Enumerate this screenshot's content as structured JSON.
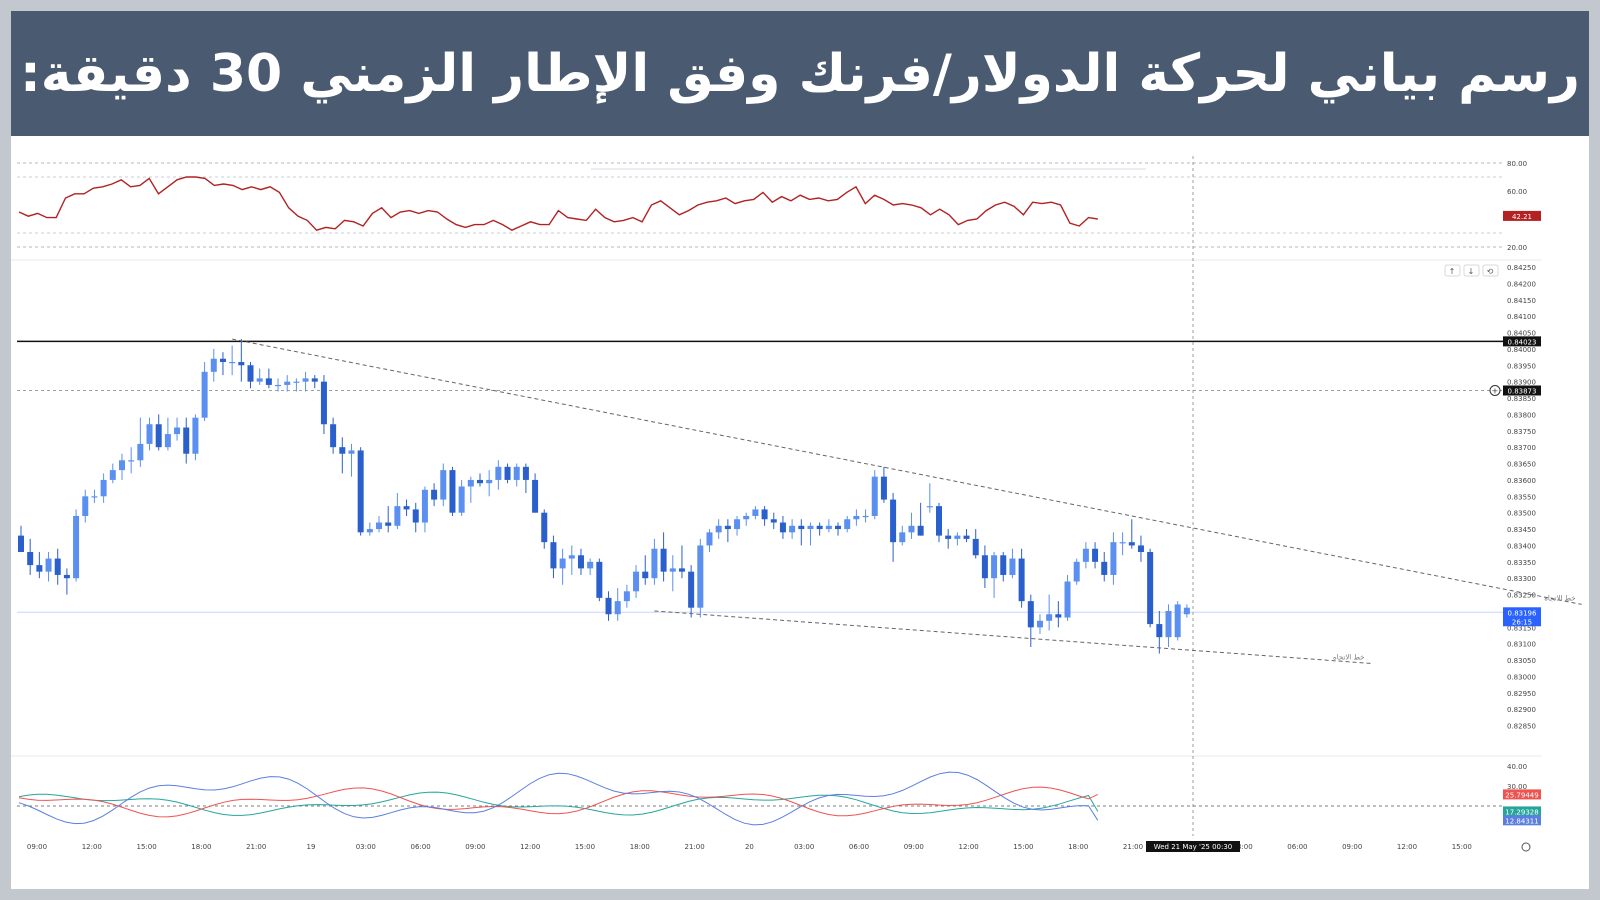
{
  "banner": {
    "title": "رسم بياني لحركة الدولار/فرنك وفق الإطار الزمني 30 دقيقة:",
    "bg_color": "#4a5a70"
  },
  "chart_data": {
    "type": "candlestick",
    "symbol": "USD/CHF",
    "timeframe": "30",
    "price_axis": {
      "ylim": [
        0.828,
        0.8425
      ],
      "ticks": [
        "0.84250",
        "0.84200",
        "0.84150",
        "0.84100",
        "0.84050",
        "0.84000",
        "0.83950",
        "0.83900",
        "0.83850",
        "0.83800",
        "0.83750",
        "0.83700",
        "0.83650",
        "0.83600",
        "0.83550",
        "0.83500",
        "0.83450",
        "0.83400",
        "0.83350",
        "0.83300",
        "0.83250",
        "0.83200",
        "0.83150",
        "0.83100",
        "0.83050",
        "0.83000",
        "0.82950",
        "0.82900",
        "0.82850"
      ]
    },
    "time_axis": {
      "labels": [
        "09:00",
        "12:00",
        "15:00",
        "18:00",
        "21:00",
        "19",
        "03:00",
        "06:00",
        "09:00",
        "12:00",
        "15:00",
        "18:00",
        "21:00",
        "20",
        "03:00",
        "06:00",
        "09:00",
        "12:00",
        "15:00",
        "18:00",
        "21:00",
        "00:00",
        "03:00",
        "06:00",
        "09:00",
        "12:00",
        "15:00"
      ],
      "crosshair_label": "Wed 21 May '25   00:30"
    },
    "bull_color": "#5b8ff0",
    "bear_color": "#2a5fcc",
    "candles": [
      {
        "o": 0.8343,
        "h": 0.8346,
        "l": 0.8338,
        "c": 0.8338
      },
      {
        "o": 0.8338,
        "h": 0.8342,
        "l": 0.8331,
        "c": 0.8334
      },
      {
        "o": 0.8334,
        "h": 0.8338,
        "l": 0.833,
        "c": 0.8332
      },
      {
        "o": 0.8332,
        "h": 0.8338,
        "l": 0.8329,
        "c": 0.8336
      },
      {
        "o": 0.8336,
        "h": 0.8339,
        "l": 0.8328,
        "c": 0.8331
      },
      {
        "o": 0.8331,
        "h": 0.8333,
        "l": 0.8325,
        "c": 0.833
      },
      {
        "o": 0.833,
        "h": 0.8351,
        "l": 0.8329,
        "c": 0.8349
      },
      {
        "o": 0.8349,
        "h": 0.8357,
        "l": 0.8347,
        "c": 0.8355
      },
      {
        "o": 0.8355,
        "h": 0.8357,
        "l": 0.8353,
        "c": 0.8355
      },
      {
        "o": 0.8355,
        "h": 0.8362,
        "l": 0.8353,
        "c": 0.836
      },
      {
        "o": 0.836,
        "h": 0.8365,
        "l": 0.8359,
        "c": 0.8363
      },
      {
        "o": 0.8363,
        "h": 0.8368,
        "l": 0.836,
        "c": 0.8366
      },
      {
        "o": 0.8366,
        "h": 0.837,
        "l": 0.8362,
        "c": 0.8366
      },
      {
        "o": 0.8366,
        "h": 0.8379,
        "l": 0.8364,
        "c": 0.8371
      },
      {
        "o": 0.8371,
        "h": 0.8379,
        "l": 0.8369,
        "c": 0.8377
      },
      {
        "o": 0.8377,
        "h": 0.838,
        "l": 0.8369,
        "c": 0.837
      },
      {
        "o": 0.837,
        "h": 0.8379,
        "l": 0.8369,
        "c": 0.8374
      },
      {
        "o": 0.8374,
        "h": 0.8379,
        "l": 0.8372,
        "c": 0.8376
      },
      {
        "o": 0.8376,
        "h": 0.8379,
        "l": 0.8365,
        "c": 0.8368
      },
      {
        "o": 0.8368,
        "h": 0.838,
        "l": 0.8366,
        "c": 0.8379
      },
      {
        "o": 0.8379,
        "h": 0.8396,
        "l": 0.8378,
        "c": 0.8393
      },
      {
        "o": 0.8393,
        "h": 0.84,
        "l": 0.839,
        "c": 0.8397
      },
      {
        "o": 0.8397,
        "h": 0.8399,
        "l": 0.8392,
        "c": 0.8396
      },
      {
        "o": 0.8396,
        "h": 0.8401,
        "l": 0.8392,
        "c": 0.8396
      },
      {
        "o": 0.8396,
        "h": 0.8403,
        "l": 0.839,
        "c": 0.8395
      },
      {
        "o": 0.8395,
        "h": 0.8396,
        "l": 0.8388,
        "c": 0.839
      },
      {
        "o": 0.839,
        "h": 0.8394,
        "l": 0.8389,
        "c": 0.8391
      },
      {
        "o": 0.8391,
        "h": 0.8394,
        "l": 0.8388,
        "c": 0.8389
      },
      {
        "o": 0.8389,
        "h": 0.8391,
        "l": 0.8387,
        "c": 0.8389
      },
      {
        "o": 0.8389,
        "h": 0.8392,
        "l": 0.8387,
        "c": 0.839
      },
      {
        "o": 0.839,
        "h": 0.8391,
        "l": 0.8387,
        "c": 0.839
      },
      {
        "o": 0.839,
        "h": 0.8393,
        "l": 0.8387,
        "c": 0.8391
      },
      {
        "o": 0.8391,
        "h": 0.8392,
        "l": 0.8388,
        "c": 0.839
      },
      {
        "o": 0.839,
        "h": 0.8392,
        "l": 0.8374,
        "c": 0.8377
      },
      {
        "o": 0.8377,
        "h": 0.8379,
        "l": 0.8368,
        "c": 0.837
      },
      {
        "o": 0.837,
        "h": 0.8373,
        "l": 0.8362,
        "c": 0.8368
      },
      {
        "o": 0.8368,
        "h": 0.8371,
        "l": 0.8361,
        "c": 0.8369
      },
      {
        "o": 0.8369,
        "h": 0.837,
        "l": 0.8343,
        "c": 0.8344
      },
      {
        "o": 0.8344,
        "h": 0.8347,
        "l": 0.8343,
        "c": 0.8345
      },
      {
        "o": 0.8345,
        "h": 0.8349,
        "l": 0.8344,
        "c": 0.8347
      },
      {
        "o": 0.8347,
        "h": 0.8352,
        "l": 0.8344,
        "c": 0.8346
      },
      {
        "o": 0.8346,
        "h": 0.8356,
        "l": 0.8345,
        "c": 0.8352
      },
      {
        "o": 0.8352,
        "h": 0.8354,
        "l": 0.8349,
        "c": 0.8351
      },
      {
        "o": 0.8351,
        "h": 0.8353,
        "l": 0.8344,
        "c": 0.8347
      },
      {
        "o": 0.8347,
        "h": 0.8358,
        "l": 0.8344,
        "c": 0.8357
      },
      {
        "o": 0.8357,
        "h": 0.8359,
        "l": 0.8352,
        "c": 0.8354
      },
      {
        "o": 0.8354,
        "h": 0.8365,
        "l": 0.8352,
        "c": 0.8363
      },
      {
        "o": 0.8363,
        "h": 0.8364,
        "l": 0.8349,
        "c": 0.835
      },
      {
        "o": 0.835,
        "h": 0.836,
        "l": 0.8349,
        "c": 0.8358
      },
      {
        "o": 0.8358,
        "h": 0.8361,
        "l": 0.8353,
        "c": 0.836
      },
      {
        "o": 0.836,
        "h": 0.8362,
        "l": 0.8358,
        "c": 0.8359
      },
      {
        "o": 0.8359,
        "h": 0.8363,
        "l": 0.8355,
        "c": 0.836
      },
      {
        "o": 0.836,
        "h": 0.8366,
        "l": 0.8357,
        "c": 0.8364
      },
      {
        "o": 0.8364,
        "h": 0.8365,
        "l": 0.8359,
        "c": 0.836
      },
      {
        "o": 0.836,
        "h": 0.8365,
        "l": 0.8358,
        "c": 0.8364
      },
      {
        "o": 0.8364,
        "h": 0.8365,
        "l": 0.8356,
        "c": 0.836
      },
      {
        "o": 0.836,
        "h": 0.8362,
        "l": 0.835,
        "c": 0.835
      },
      {
        "o": 0.835,
        "h": 0.8351,
        "l": 0.8339,
        "c": 0.8341
      },
      {
        "o": 0.8341,
        "h": 0.8343,
        "l": 0.833,
        "c": 0.8333
      },
      {
        "o": 0.8333,
        "h": 0.8339,
        "l": 0.8328,
        "c": 0.8336
      },
      {
        "o": 0.8336,
        "h": 0.834,
        "l": 0.8331,
        "c": 0.8337
      },
      {
        "o": 0.8337,
        "h": 0.8339,
        "l": 0.8331,
        "c": 0.8333
      },
      {
        "o": 0.8333,
        "h": 0.8336,
        "l": 0.8331,
        "c": 0.8335
      },
      {
        "o": 0.8335,
        "h": 0.8336,
        "l": 0.8323,
        "c": 0.8324
      },
      {
        "o": 0.8324,
        "h": 0.8326,
        "l": 0.8317,
        "c": 0.8319
      },
      {
        "o": 0.8319,
        "h": 0.8327,
        "l": 0.8317,
        "c": 0.8323
      },
      {
        "o": 0.8323,
        "h": 0.8328,
        "l": 0.8321,
        "c": 0.8326
      },
      {
        "o": 0.8326,
        "h": 0.8334,
        "l": 0.8324,
        "c": 0.8332
      },
      {
        "o": 0.8332,
        "h": 0.8337,
        "l": 0.8328,
        "c": 0.833
      },
      {
        "o": 0.833,
        "h": 0.8342,
        "l": 0.8328,
        "c": 0.8339
      },
      {
        "o": 0.8339,
        "h": 0.8344,
        "l": 0.8329,
        "c": 0.8332
      },
      {
        "o": 0.8332,
        "h": 0.8337,
        "l": 0.8326,
        "c": 0.8333
      },
      {
        "o": 0.8333,
        "h": 0.834,
        "l": 0.833,
        "c": 0.8332
      },
      {
        "o": 0.8332,
        "h": 0.8334,
        "l": 0.8318,
        "c": 0.8321
      },
      {
        "o": 0.8321,
        "h": 0.8342,
        "l": 0.8318,
        "c": 0.834
      },
      {
        "o": 0.834,
        "h": 0.8345,
        "l": 0.8338,
        "c": 0.8344
      },
      {
        "o": 0.8344,
        "h": 0.8348,
        "l": 0.8342,
        "c": 0.8346
      },
      {
        "o": 0.8346,
        "h": 0.8348,
        "l": 0.8341,
        "c": 0.8345
      },
      {
        "o": 0.8345,
        "h": 0.8349,
        "l": 0.8343,
        "c": 0.8348
      },
      {
        "o": 0.8348,
        "h": 0.835,
        "l": 0.8346,
        "c": 0.8349
      },
      {
        "o": 0.8349,
        "h": 0.8352,
        "l": 0.8348,
        "c": 0.8351
      },
      {
        "o": 0.8351,
        "h": 0.8352,
        "l": 0.8346,
        "c": 0.8348
      },
      {
        "o": 0.8348,
        "h": 0.835,
        "l": 0.8345,
        "c": 0.8347
      },
      {
        "o": 0.8347,
        "h": 0.8349,
        "l": 0.8342,
        "c": 0.8344
      },
      {
        "o": 0.8344,
        "h": 0.8348,
        "l": 0.8342,
        "c": 0.8346
      },
      {
        "o": 0.8346,
        "h": 0.8348,
        "l": 0.834,
        "c": 0.8345
      },
      {
        "o": 0.8345,
        "h": 0.8347,
        "l": 0.834,
        "c": 0.8346
      },
      {
        "o": 0.8346,
        "h": 0.8347,
        "l": 0.8343,
        "c": 0.8345
      },
      {
        "o": 0.8345,
        "h": 0.8348,
        "l": 0.8344,
        "c": 0.8346
      },
      {
        "o": 0.8346,
        "h": 0.8347,
        "l": 0.8343,
        "c": 0.8345
      },
      {
        "o": 0.8345,
        "h": 0.8349,
        "l": 0.8344,
        "c": 0.8348
      },
      {
        "o": 0.8348,
        "h": 0.8351,
        "l": 0.8346,
        "c": 0.8349
      },
      {
        "o": 0.8349,
        "h": 0.8351,
        "l": 0.8347,
        "c": 0.8349
      },
      {
        "o": 0.8349,
        "h": 0.8363,
        "l": 0.8348,
        "c": 0.8361
      },
      {
        "o": 0.8361,
        "h": 0.8364,
        "l": 0.8353,
        "c": 0.8354
      },
      {
        "o": 0.8354,
        "h": 0.8356,
        "l": 0.8335,
        "c": 0.8341
      },
      {
        "o": 0.8341,
        "h": 0.8346,
        "l": 0.834,
        "c": 0.8344
      },
      {
        "o": 0.8344,
        "h": 0.835,
        "l": 0.8342,
        "c": 0.8346
      },
      {
        "o": 0.8346,
        "h": 0.8353,
        "l": 0.8343,
        "c": 0.8343
      },
      {
        "o": 0.8352,
        "h": 0.8359,
        "l": 0.835,
        "c": 0.8352
      },
      {
        "o": 0.8352,
        "h": 0.8353,
        "l": 0.8341,
        "c": 0.8343
      },
      {
        "o": 0.8343,
        "h": 0.8345,
        "l": 0.8339,
        "c": 0.8342
      },
      {
        "o": 0.8342,
        "h": 0.8344,
        "l": 0.834,
        "c": 0.8343
      },
      {
        "o": 0.8343,
        "h": 0.8345,
        "l": 0.8341,
        "c": 0.8342
      },
      {
        "o": 0.8342,
        "h": 0.8345,
        "l": 0.8336,
        "c": 0.8337
      },
      {
        "o": 0.8337,
        "h": 0.834,
        "l": 0.8327,
        "c": 0.833
      },
      {
        "o": 0.833,
        "h": 0.8338,
        "l": 0.8324,
        "c": 0.8337
      },
      {
        "o": 0.8337,
        "h": 0.8338,
        "l": 0.8329,
        "c": 0.8331
      },
      {
        "o": 0.8331,
        "h": 0.8339,
        "l": 0.833,
        "c": 0.8336
      },
      {
        "o": 0.8336,
        "h": 0.8339,
        "l": 0.8321,
        "c": 0.8323
      },
      {
        "o": 0.8323,
        "h": 0.8325,
        "l": 0.8309,
        "c": 0.8315
      },
      {
        "o": 0.8315,
        "h": 0.8319,
        "l": 0.8313,
        "c": 0.8317
      },
      {
        "o": 0.8317,
        "h": 0.8325,
        "l": 0.8314,
        "c": 0.8319
      },
      {
        "o": 0.8319,
        "h": 0.8323,
        "l": 0.8315,
        "c": 0.8318
      },
      {
        "o": 0.8318,
        "h": 0.8331,
        "l": 0.8317,
        "c": 0.8329
      },
      {
        "o": 0.8329,
        "h": 0.8336,
        "l": 0.8328,
        "c": 0.8335
      },
      {
        "o": 0.8335,
        "h": 0.8341,
        "l": 0.8333,
        "c": 0.8339
      },
      {
        "o": 0.8339,
        "h": 0.8341,
        "l": 0.8333,
        "c": 0.8335
      },
      {
        "o": 0.8335,
        "h": 0.8338,
        "l": 0.8329,
        "c": 0.8331
      },
      {
        "o": 0.8331,
        "h": 0.8344,
        "l": 0.8328,
        "c": 0.8341
      },
      {
        "o": 0.8341,
        "h": 0.8344,
        "l": 0.8337,
        "c": 0.8341
      },
      {
        "o": 0.8341,
        "h": 0.8348,
        "l": 0.8339,
        "c": 0.834
      },
      {
        "o": 0.834,
        "h": 0.8343,
        "l": 0.8335,
        "c": 0.8338
      },
      {
        "o": 0.8338,
        "h": 0.8339,
        "l": 0.8315,
        "c": 0.8316
      },
      {
        "o": 0.8316,
        "h": 0.832,
        "l": 0.8307,
        "c": 0.8312
      },
      {
        "o": 0.8312,
        "h": 0.8322,
        "l": 0.8309,
        "c": 0.832
      },
      {
        "o": 0.8312,
        "h": 0.8323,
        "l": 0.8311,
        "c": 0.8322
      },
      {
        "o": 0.8319,
        "h": 0.8322,
        "l": 0.8318,
        "c": 0.8321
      }
    ],
    "lines": {
      "resistance": {
        "price": "0.84023",
        "color": "#111111"
      },
      "dashed_level": {
        "price": "0.83873"
      },
      "current_price": {
        "price": "0.83196",
        "countdown": "26:15",
        "color": "#2962ff"
      },
      "upper_trendline": {
        "from": [
          23,
          0.8403
        ],
        "to": [
          170,
          0.8322
        ],
        "label": "خط الاتجاه"
      },
      "lower_trendline": {
        "from": [
          69,
          0.832
        ],
        "to": [
          147,
          0.8304
        ],
        "label": "خط الاتجاه"
      }
    },
    "rsi": {
      "ticks": [
        "80.00",
        "60.00",
        "20.00"
      ],
      "levels": [
        70,
        30
      ],
      "ylim": [
        15,
        85
      ],
      "last_value": "42.21",
      "color": "#b22222",
      "values": [
        45,
        42,
        44,
        41,
        41,
        55,
        58,
        58,
        62,
        63,
        65,
        68,
        63,
        64,
        69,
        58,
        63,
        68,
        70,
        70,
        69,
        64,
        65,
        64,
        61,
        63,
        61,
        63,
        59,
        48,
        42,
        39,
        32,
        34,
        33,
        39,
        38,
        35,
        44,
        48,
        41,
        45,
        46,
        44,
        46,
        45,
        40,
        36,
        34,
        36,
        36,
        39,
        36,
        32,
        35,
        38,
        36,
        36,
        46,
        41,
        40,
        39,
        47,
        41,
        38,
        39,
        41,
        38,
        50,
        53,
        48,
        43,
        46,
        50,
        52,
        53,
        55,
        51,
        53,
        54,
        59,
        52,
        56,
        53,
        57,
        54,
        55,
        53,
        54,
        59,
        63,
        51,
        57,
        54,
        50,
        51,
        50,
        48,
        43,
        47,
        43,
        36,
        39,
        40,
        46,
        50,
        52,
        49,
        43,
        52,
        51,
        52,
        50,
        37,
        35,
        41,
        40
      ],
      "visible_count": 117
    },
    "dmi": {
      "ticks": [
        "40.00",
        "30.00"
      ],
      "ylim": [
        8,
        44
      ],
      "level": 20,
      "plus_di": {
        "last": "17.29328",
        "color": "#26a69a"
      },
      "minus_di": {
        "last": "25.79449",
        "color": "#ef5350"
      },
      "adx": {
        "last": "12.84311",
        "color": "#5b7fe0"
      }
    }
  }
}
